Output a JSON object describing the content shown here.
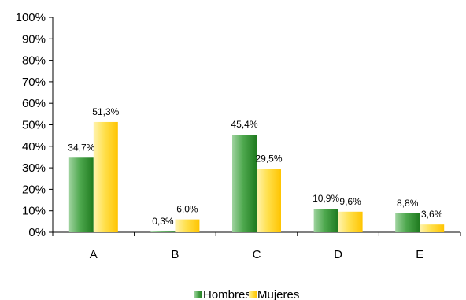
{
  "chart_data": {
    "type": "bar",
    "categories": [
      "A",
      "B",
      "C",
      "D",
      "E"
    ],
    "series": [
      {
        "name": "Hombres",
        "values": [
          34.7,
          0.3,
          45.4,
          10.9,
          8.8
        ],
        "labels": [
          "34,7%",
          "0,3%",
          "45,4%",
          "10,9%",
          "8,8%"
        ],
        "color": "#2e8b2e"
      },
      {
        "name": "Mujeres",
        "values": [
          51.3,
          6.0,
          29.5,
          9.6,
          3.6
        ],
        "labels": [
          "51,3%",
          "6,0%",
          "29,5%",
          "9,6%",
          "3,6%"
        ],
        "color": "#ffcc00"
      }
    ],
    "y_ticks": [
      "0%",
      "10%",
      "20%",
      "30%",
      "40%",
      "50%",
      "60%",
      "70%",
      "80%",
      "90%",
      "100%"
    ],
    "ylim": [
      0,
      100
    ],
    "grid": false,
    "legend_position": "bottom"
  }
}
